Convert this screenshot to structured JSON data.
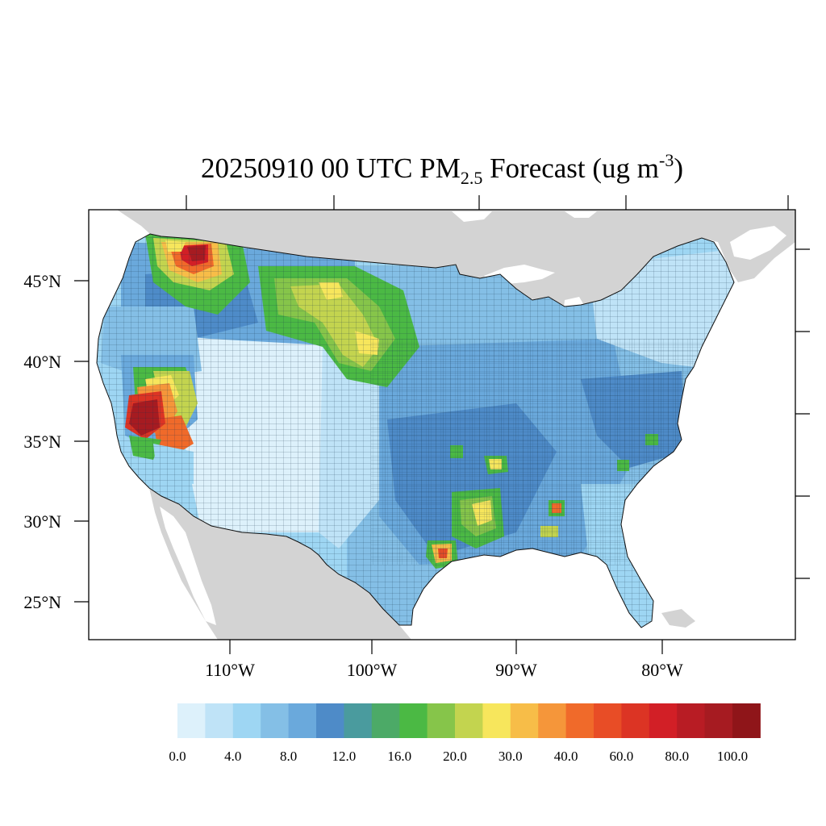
{
  "title": {
    "main": "20250910 00 UTC PM",
    "subscript": "2.5",
    "middle": " Forecast (ug m",
    "superscript": "-3",
    "end": ")"
  },
  "axes": {
    "lat_labels": [
      "45°N",
      "40°N",
      "35°N",
      "30°N",
      "25°N"
    ],
    "lon_labels": [
      "110°W",
      "100°W",
      "90°W",
      "80°W"
    ]
  },
  "colorbar": {
    "tick_labels": [
      "0.0",
      "4.0",
      "8.0",
      "12.0",
      "16.0",
      "20.0",
      "30.0",
      "40.0",
      "60.0",
      "80.0",
      "100.0"
    ],
    "colors": [
      "#ddf1fb",
      "#bfe3f7",
      "#9ed6f3",
      "#84bfe6",
      "#6aa9dc",
      "#4e8bc8",
      "#4a9b9e",
      "#4caa67",
      "#4bb944",
      "#86c54a",
      "#c3d44f",
      "#f7e65c",
      "#f7bd48",
      "#f5963a",
      "#f06a2a",
      "#e84d26",
      "#dc3424",
      "#d21f26",
      "#b81c24",
      "#a61b21",
      "#8f1519"
    ]
  },
  "map_colors": {
    "land_outside": "#d3d3d3",
    "water": "#ffffff",
    "county_border": "#1a1a1a"
  },
  "chart_data": {
    "type": "heatmap",
    "variable": "PM2.5",
    "units": "ug m-3",
    "valid_time": "20250910 00 UTC",
    "lat_ticks": [
      45,
      40,
      35,
      30,
      25
    ],
    "lon_ticks": [
      -110,
      -100,
      -90,
      -80
    ],
    "colorbar_levels": [
      0,
      4,
      8,
      12,
      16,
      20,
      30,
      40,
      60,
      80,
      100
    ]
  }
}
